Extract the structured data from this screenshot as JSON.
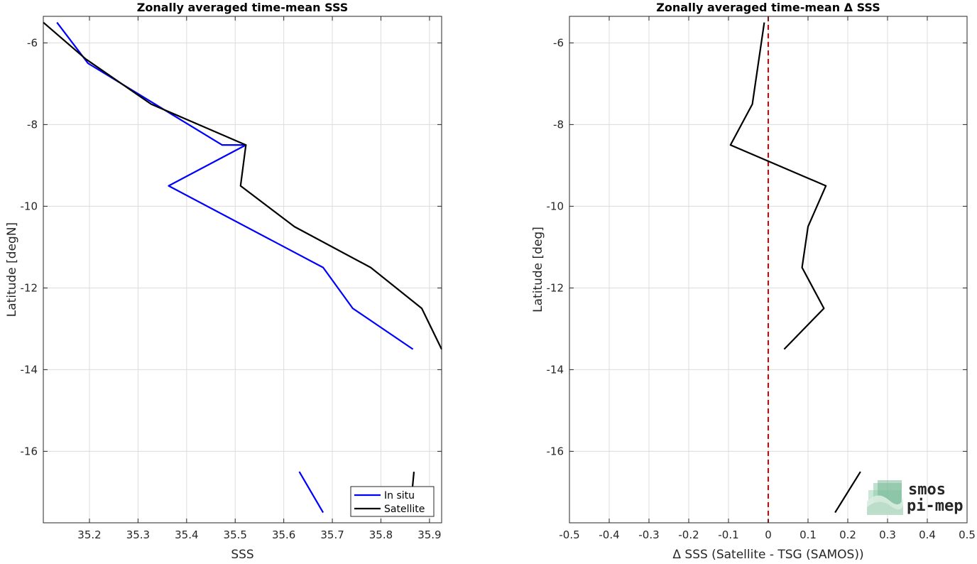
{
  "chart_data": [
    {
      "type": "line",
      "title": "Zonally averaged time-mean SSS",
      "xlabel": "SSS",
      "ylabel": "Latitude [degN]",
      "xlim": [
        35.105,
        35.925
      ],
      "ylim": [
        -17.75,
        -5.35
      ],
      "xticks": [
        35.2,
        35.3,
        35.4,
        35.5,
        35.6,
        35.7,
        35.8,
        35.9
      ],
      "yticks": [
        -6,
        -8,
        -10,
        -12,
        -14,
        -16
      ],
      "grid": true,
      "legend_position": "bottom-right",
      "series": [
        {
          "name": "In situ",
          "color": "#0000ff",
          "segments": [
            [
              [
                35.133,
                -5.5
              ],
              [
                35.197,
                -6.5
              ],
              [
                35.473,
                -8.5
              ],
              [
                35.522,
                -8.5
              ],
              [
                35.363,
                -9.5
              ],
              [
                35.681,
                -11.5
              ],
              [
                35.742,
                -12.5
              ],
              [
                35.866,
                -13.5
              ]
            ],
            [
              [
                35.632,
                -16.5
              ],
              [
                35.681,
                -17.5
              ]
            ]
          ]
        },
        {
          "name": "Satellite",
          "color": "#000000",
          "segments": [
            [
              [
                35.105,
                -5.5
              ],
              [
                35.193,
                -6.4
              ],
              [
                35.327,
                -7.5
              ],
              [
                35.522,
                -8.5
              ],
              [
                35.511,
                -9.5
              ],
              [
                35.622,
                -10.5
              ],
              [
                35.779,
                -11.5
              ],
              [
                35.884,
                -12.5
              ],
              [
                35.925,
                -13.5
              ]
            ],
            [
              [
                35.868,
                -16.5
              ],
              [
                35.864,
                -17.0
              ]
            ]
          ]
        }
      ]
    },
    {
      "type": "line",
      "title": "Zonally averaged time-mean Δ SSS",
      "xlabel": "Δ SSS (Satellite - TSG (SAMOS))",
      "ylabel": "Latitude [deg]",
      "xlim": [
        -0.5,
        0.5
      ],
      "ylim": [
        -17.75,
        -5.35
      ],
      "xticks": [
        -0.5,
        -0.4,
        -0.3,
        -0.2,
        -0.1,
        0,
        0.1,
        0.2,
        0.3,
        0.4,
        0.5
      ],
      "yticks": [
        -6,
        -8,
        -10,
        -12,
        -14,
        -16
      ],
      "grid": true,
      "reference_line": {
        "x": 0,
        "color": "#dd0000",
        "style": "dashed"
      },
      "series": [
        {
          "color": "#000000",
          "segments": [
            [
              [
                -0.01,
                -5.5
              ],
              [
                -0.04,
                -7.5
              ],
              [
                -0.095,
                -8.5
              ],
              [
                0.145,
                -9.5
              ],
              [
                0.1,
                -10.5
              ],
              [
                0.085,
                -11.5
              ],
              [
                0.14,
                -12.5
              ],
              [
                0.04,
                -13.5
              ]
            ],
            [
              [
                0.232,
                -16.5
              ],
              [
                0.168,
                -17.5
              ]
            ]
          ]
        }
      ]
    }
  ],
  "logo": {
    "line1": "smos",
    "line2": "pi-mep",
    "color1": "#7fc7a0",
    "color2": "#6a8f84"
  }
}
